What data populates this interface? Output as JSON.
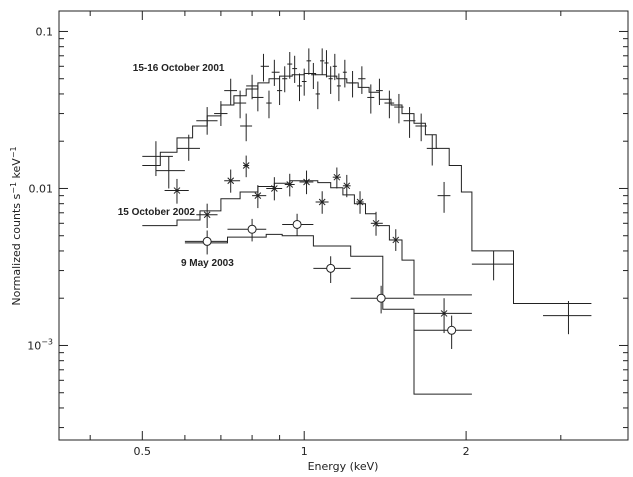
{
  "chart_data": {
    "type": "scatter",
    "xlabel": "Energy (keV)",
    "ylabel": "Normalized counts s^-1 keV^-1",
    "xscale": "log",
    "yscale": "log",
    "xlim": [
      0.35,
      4.0
    ],
    "ylim": [
      0.00025,
      0.135
    ],
    "x_ticks": [
      {
        "value": 0.5,
        "label": "0.5"
      },
      {
        "value": 1,
        "label": "1"
      },
      {
        "value": 2,
        "label": "2"
      }
    ],
    "y_ticks": [
      {
        "value": 0.1,
        "label": "0.1"
      },
      {
        "value": 0.01,
        "label": "0.01"
      },
      {
        "value": 0.001,
        "label": "10^-3"
      }
    ],
    "annotations": [
      {
        "text": "15-16 October 2001",
        "x": 0.48,
        "y": 0.056
      },
      {
        "text": "15 October 2002",
        "x": 0.45,
        "y": 0.0068
      },
      {
        "text": "9 May 2003",
        "x": 0.59,
        "y": 0.0032
      }
    ],
    "series": [
      {
        "marker": "none",
        "points": [
          [
            0.53,
            0.016,
            0.5,
            0.57,
            0.012,
            0.02
          ],
          [
            0.56,
            0.013,
            0.53,
            0.6,
            0.01,
            0.016
          ],
          [
            0.61,
            0.018,
            0.58,
            0.64,
            0.015,
            0.022
          ],
          [
            0.66,
            0.027,
            0.63,
            0.69,
            0.022,
            0.033
          ],
          [
            0.7,
            0.03,
            0.68,
            0.72,
            0.025,
            0.036
          ],
          [
            0.73,
            0.042,
            0.71,
            0.75,
            0.034,
            0.05
          ],
          [
            0.76,
            0.035,
            0.74,
            0.78,
            0.028,
            0.042
          ],
          [
            0.78,
            0.025,
            0.76,
            0.8,
            0.02,
            0.03
          ],
          [
            0.8,
            0.045,
            0.78,
            0.82,
            0.037,
            0.053
          ],
          [
            0.82,
            0.038,
            0.8,
            0.84,
            0.031,
            0.045
          ],
          [
            0.84,
            0.06,
            0.83,
            0.86,
            0.048,
            0.072
          ],
          [
            0.86,
            0.035,
            0.85,
            0.87,
            0.028,
            0.042
          ],
          [
            0.88,
            0.055,
            0.87,
            0.9,
            0.045,
            0.066
          ],
          [
            0.9,
            0.042,
            0.89,
            0.91,
            0.034,
            0.05
          ],
          [
            0.92,
            0.05,
            0.91,
            0.93,
            0.041,
            0.06
          ],
          [
            0.94,
            0.062,
            0.93,
            0.95,
            0.05,
            0.074
          ],
          [
            0.96,
            0.058,
            0.95,
            0.97,
            0.047,
            0.07
          ],
          [
            0.98,
            0.045,
            0.97,
            0.99,
            0.036,
            0.054
          ],
          [
            1.0,
            0.048,
            0.99,
            1.01,
            0.039,
            0.058
          ],
          [
            1.02,
            0.065,
            1.01,
            1.03,
            0.053,
            0.078
          ],
          [
            1.04,
            0.053,
            1.03,
            1.05,
            0.043,
            0.063
          ],
          [
            1.06,
            0.04,
            1.05,
            1.07,
            0.032,
            0.048
          ],
          [
            1.08,
            0.065,
            1.07,
            1.09,
            0.053,
            0.078
          ],
          [
            1.1,
            0.063,
            1.09,
            1.11,
            0.051,
            0.076
          ],
          [
            1.12,
            0.05,
            1.11,
            1.13,
            0.04,
            0.06
          ],
          [
            1.14,
            0.06,
            1.13,
            1.15,
            0.049,
            0.072
          ],
          [
            1.16,
            0.045,
            1.15,
            1.17,
            0.036,
            0.054
          ],
          [
            1.19,
            0.055,
            1.18,
            1.2,
            0.044,
            0.066
          ],
          [
            1.23,
            0.047,
            1.21,
            1.25,
            0.038,
            0.056
          ],
          [
            1.28,
            0.05,
            1.26,
            1.3,
            0.04,
            0.06
          ],
          [
            1.33,
            0.038,
            1.31,
            1.35,
            0.03,
            0.046
          ],
          [
            1.38,
            0.042,
            1.36,
            1.4,
            0.034,
            0.05
          ],
          [
            1.44,
            0.035,
            1.41,
            1.47,
            0.028,
            0.042
          ],
          [
            1.5,
            0.033,
            1.47,
            1.53,
            0.026,
            0.04
          ],
          [
            1.57,
            0.027,
            1.53,
            1.61,
            0.021,
            0.033
          ],
          [
            1.65,
            0.025,
            1.61,
            1.69,
            0.02,
            0.03
          ],
          [
            1.73,
            0.018,
            1.69,
            1.77,
            0.014,
            0.022
          ],
          [
            1.82,
            0.009,
            1.77,
            1.87,
            0.007,
            0.011
          ],
          [
            2.25,
            0.0033,
            2.05,
            2.45,
            0.0026,
            0.004
          ],
          [
            3.1,
            0.00155,
            2.78,
            3.42,
            0.00118,
            0.00192
          ]
        ],
        "model": [
          [
            0.5,
            0.014
          ],
          [
            0.54,
            0.017
          ],
          [
            0.58,
            0.021
          ],
          [
            0.62,
            0.025
          ],
          [
            0.66,
            0.029
          ],
          [
            0.7,
            0.034
          ],
          [
            0.74,
            0.039
          ],
          [
            0.78,
            0.043
          ],
          [
            0.82,
            0.047
          ],
          [
            0.86,
            0.05
          ],
          [
            0.9,
            0.052
          ],
          [
            0.95,
            0.053
          ],
          [
            1.0,
            0.054
          ],
          [
            1.05,
            0.053
          ],
          [
            1.1,
            0.052
          ],
          [
            1.15,
            0.05
          ],
          [
            1.2,
            0.047
          ],
          [
            1.26,
            0.044
          ],
          [
            1.32,
            0.041
          ],
          [
            1.38,
            0.037
          ],
          [
            1.45,
            0.034
          ],
          [
            1.52,
            0.03
          ],
          [
            1.6,
            0.026
          ],
          [
            1.68,
            0.022
          ],
          [
            1.76,
            0.018
          ],
          [
            1.86,
            0.014
          ],
          [
            1.96,
            0.0095
          ],
          [
            2.05,
            0.004
          ],
          [
            2.45,
            0.00185
          ],
          [
            3.42,
            0.00185
          ]
        ]
      },
      {
        "marker": "star",
        "points": [
          [
            0.58,
            0.0097,
            0.55,
            0.61,
            0.008,
            0.0115
          ],
          [
            0.66,
            0.0068,
            0.63,
            0.69,
            0.0056,
            0.008
          ],
          [
            0.73,
            0.0112,
            0.71,
            0.76,
            0.0094,
            0.0132
          ],
          [
            0.78,
            0.014,
            0.77,
            0.79,
            0.0118,
            0.0162
          ],
          [
            0.82,
            0.009,
            0.8,
            0.85,
            0.0075,
            0.0105
          ],
          [
            0.88,
            0.01,
            0.85,
            0.91,
            0.0084,
            0.0118
          ],
          [
            0.94,
            0.0106,
            0.92,
            0.96,
            0.0089,
            0.0124
          ],
          [
            1.01,
            0.011,
            0.98,
            1.04,
            0.0092,
            0.013
          ],
          [
            1.08,
            0.0082,
            1.05,
            1.11,
            0.0069,
            0.0096
          ],
          [
            1.15,
            0.0118,
            1.13,
            1.17,
            0.01,
            0.0136
          ],
          [
            1.2,
            0.0104,
            1.18,
            1.22,
            0.0088,
            0.0122
          ],
          [
            1.27,
            0.0082,
            1.25,
            1.29,
            0.0069,
            0.0096
          ],
          [
            1.36,
            0.006,
            1.33,
            1.4,
            0.005,
            0.0071
          ],
          [
            1.48,
            0.0047,
            1.44,
            1.52,
            0.004,
            0.0055
          ],
          [
            1.82,
            0.0016,
            1.6,
            2.05,
            0.0012,
            0.002
          ]
        ],
        "model": [
          [
            0.5,
            0.0058
          ],
          [
            0.58,
            0.0063
          ],
          [
            0.64,
            0.0072
          ],
          [
            0.7,
            0.0086
          ],
          [
            0.76,
            0.0095
          ],
          [
            0.82,
            0.0103
          ],
          [
            0.88,
            0.0108
          ],
          [
            0.94,
            0.0112
          ],
          [
            1.0,
            0.0112
          ],
          [
            1.06,
            0.0109
          ],
          [
            1.12,
            0.0101
          ],
          [
            1.18,
            0.0091
          ],
          [
            1.24,
            0.008
          ],
          [
            1.3,
            0.0069
          ],
          [
            1.36,
            0.0058
          ],
          [
            1.44,
            0.0047
          ],
          [
            1.52,
            0.0035
          ],
          [
            1.6,
            0.0021
          ],
          [
            2.05,
            0.0021
          ]
        ]
      },
      {
        "marker": "circle",
        "points": [
          [
            0.66,
            0.0046,
            0.6,
            0.72,
            0.0038,
            0.0054
          ],
          [
            0.8,
            0.0055,
            0.72,
            0.85,
            0.0046,
            0.0064
          ],
          [
            0.97,
            0.0059,
            0.91,
            1.04,
            0.005,
            0.0069
          ],
          [
            1.12,
            0.0031,
            1.04,
            1.22,
            0.0025,
            0.0037
          ],
          [
            1.39,
            0.002,
            1.22,
            1.6,
            0.0016,
            0.0024
          ],
          [
            1.88,
            0.00125,
            1.6,
            2.05,
            0.00095,
            0.00155
          ]
        ],
        "model": [
          [
            0.6,
            0.0045
          ],
          [
            0.72,
            0.0049
          ],
          [
            0.85,
            0.0051
          ],
          [
            0.91,
            0.005
          ],
          [
            1.04,
            0.0043
          ],
          [
            1.22,
            0.0037
          ],
          [
            1.4,
            0.0017
          ],
          [
            1.6,
            0.00049
          ],
          [
            2.05,
            0.00049
          ]
        ]
      }
    ]
  }
}
